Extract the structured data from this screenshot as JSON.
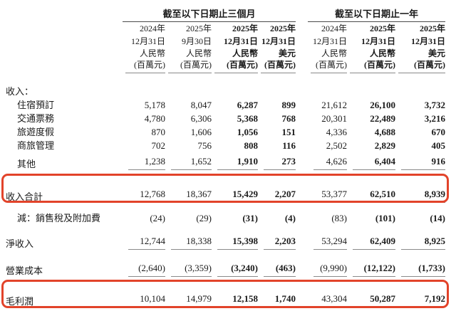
{
  "table": {
    "highlight_color": "#e2432a",
    "col_groups": [
      {
        "label": "截至以下日期止三個月",
        "span": 4
      },
      {
        "label": "截至以下日期止一年",
        "span": 3
      }
    ],
    "columns": [
      {
        "year": "2024年",
        "date": "12月31日",
        "currency": "人民幣",
        "unit": "(百萬元)",
        "bold": false
      },
      {
        "year": "2025年",
        "date": "9月30日",
        "currency": "人民幣",
        "unit": "(百萬元)",
        "bold": false
      },
      {
        "year": "2025年",
        "date": "12月31日",
        "currency": "人民幣",
        "unit": "(百萬元)",
        "bold": true
      },
      {
        "year": "2025年",
        "date": "12月31日",
        "currency": "美元",
        "unit": "(百萬元)",
        "bold": true
      },
      {
        "year": "2024年",
        "date": "12月31日",
        "currency": "人民幣",
        "unit": "(百萬元)",
        "bold": false
      },
      {
        "year": "2025年",
        "date": "12月31日",
        "currency": "人民幣",
        "unit": "(百萬元)",
        "bold": true
      },
      {
        "year": "2025年",
        "date": "12月31日",
        "currency": "美元",
        "unit": "(百萬元)",
        "bold": true
      }
    ],
    "rows": [
      {
        "label": "收入：",
        "indent": 0,
        "underline": false,
        "highlight": false,
        "values": [
          "",
          "",
          "",
          "",
          "",
          "",
          ""
        ]
      },
      {
        "label": "住宿預訂",
        "indent": 1,
        "underline": false,
        "highlight": false,
        "values": [
          "5,178",
          "8,047",
          "6,287",
          "899",
          "21,612",
          "26,100",
          "3,732"
        ]
      },
      {
        "label": "交通票務",
        "indent": 1,
        "underline": false,
        "highlight": false,
        "values": [
          "4,780",
          "6,306",
          "5,368",
          "768",
          "20,301",
          "22,489",
          "3,216"
        ]
      },
      {
        "label": "旅遊度假",
        "indent": 1,
        "underline": false,
        "highlight": false,
        "values": [
          "870",
          "1,606",
          "1,056",
          "151",
          "4,336",
          "4,688",
          "670"
        ]
      },
      {
        "label": "商旅管理",
        "indent": 1,
        "underline": false,
        "highlight": false,
        "values": [
          "702",
          "756",
          "808",
          "116",
          "2,502",
          "2,829",
          "405"
        ]
      },
      {
        "label": "其他",
        "indent": 1,
        "underline": true,
        "highlight": false,
        "values": [
          "1,238",
          "1,652",
          "1,910",
          "273",
          "4,626",
          "6,404",
          "916"
        ]
      },
      {
        "label": "收入合計",
        "indent": 0,
        "underline": true,
        "highlight": true,
        "values": [
          "12,768",
          "18,367",
          "15,429",
          "2,207",
          "53,377",
          "62,510",
          "8,939"
        ]
      },
      {
        "label": "減：銷售稅及附加費",
        "indent": 1,
        "underline": false,
        "highlight": false,
        "values": [
          "(24)",
          "(29)",
          "(31)",
          "(4)",
          "(83)",
          "(101)",
          "(14)"
        ]
      },
      {
        "label": "淨收入",
        "indent": 0,
        "underline": true,
        "highlight": false,
        "values": [
          "12,744",
          "18,338",
          "15,398",
          "2,203",
          "53,294",
          "62,409",
          "8,925"
        ]
      },
      {
        "label": "營業成本",
        "indent": 0,
        "underline": true,
        "highlight": false,
        "values": [
          "(2,640)",
          "(3,359)",
          "(3,240)",
          "(463)",
          "(9,990)",
          "(12,122)",
          "(1,733)"
        ]
      },
      {
        "label": "毛利潤",
        "indent": 0,
        "underline": true,
        "highlight": true,
        "values": [
          "10,104",
          "14,979",
          "12,158",
          "1,740",
          "43,304",
          "50,287",
          "7,192"
        ]
      }
    ]
  }
}
